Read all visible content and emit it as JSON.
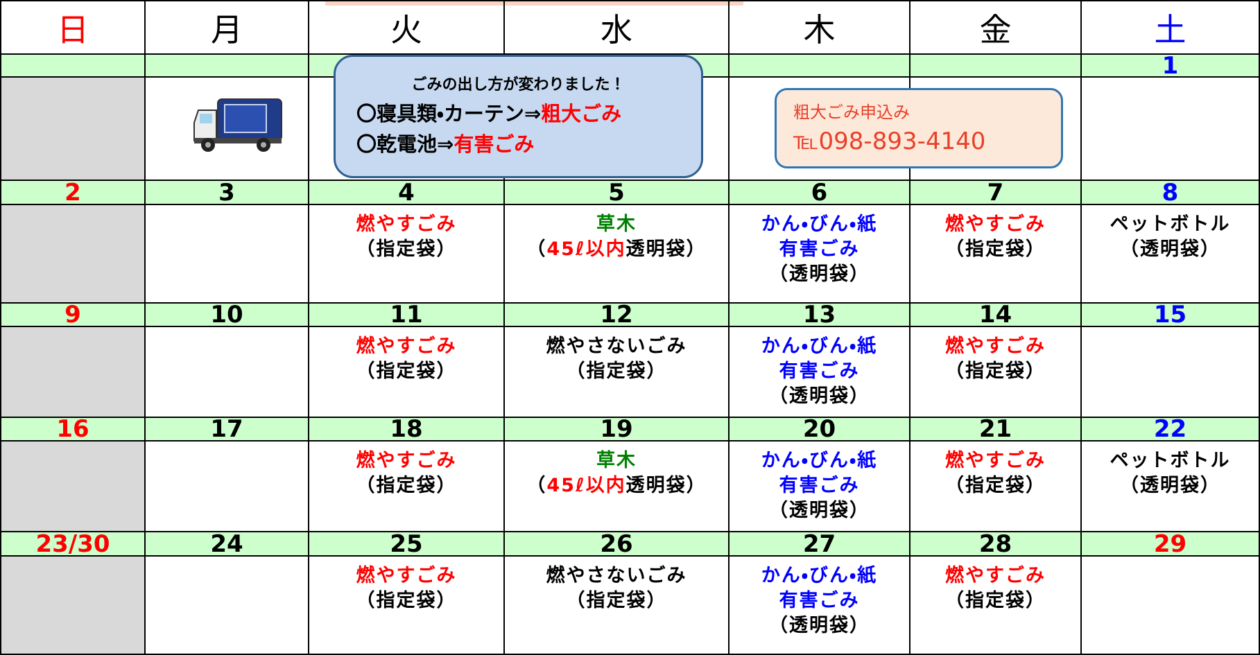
{
  "header": {
    "weekdays": [
      {
        "text": "日",
        "color": "#ff0000"
      },
      {
        "text": "月"
      },
      {
        "text": "火"
      },
      {
        "text": "水"
      },
      {
        "text": "木"
      },
      {
        "text": "金"
      },
      {
        "text": "土",
        "color": "#0000ff"
      }
    ]
  },
  "notices": [
    {
      "lines": [
        [
          {
            "text": "ごみの出し方が変わりました！"
          }
        ],
        [
          {
            "text": "〇寝具類・カーテン⇒"
          },
          {
            "text": "粗大ごみ",
            "color": "#ff0000"
          }
        ],
        [
          {
            "text": "〇乾電池⇒"
          },
          {
            "text": "有害ごみ",
            "color": "#ff0000"
          }
        ]
      ]
    },
    {
      "lines": [
        [
          {
            "text": "粗大ごみ申込み"
          }
        ],
        [
          {
            "text": "℡098-893-4140"
          }
        ]
      ]
    }
  ],
  "weeks": [
    {
      "cells": [
        {},
        {},
        {},
        {},
        {},
        {},
        {
          "date": "1",
          "date_color": "#0000ff"
        }
      ]
    },
    {
      "cells": [
        {
          "date": "2",
          "date_color": "#ff0000"
        },
        {
          "date": "3"
        },
        {
          "date": "4",
          "lines": [
            [
              {
                "text": "燃やすごみ",
                "color": "#ff0000"
              }
            ],
            [
              {
                "text": "（指定袋）"
              }
            ]
          ]
        },
        {
          "date": "5",
          "lines": [
            [
              {
                "text": "草木",
                "color": "#008000"
              }
            ],
            [
              {
                "text": "（"
              },
              {
                "text": "45ℓ以内",
                "color": "#ff0000"
              },
              {
                "text": "透明袋）"
              }
            ]
          ]
        },
        {
          "date": "6",
          "lines": [
            [
              {
                "text": "かん・びん・紙",
                "color": "#0000ff"
              }
            ],
            [
              {
                "text": "有害ごみ",
                "color": "#0000ff"
              }
            ],
            [
              {
                "text": "（透明袋）"
              }
            ]
          ]
        },
        {
          "date": "7",
          "lines": [
            [
              {
                "text": "燃やすごみ",
                "color": "#ff0000"
              }
            ],
            [
              {
                "text": "（指定袋）"
              }
            ]
          ]
        },
        {
          "date": "8",
          "date_color": "#0000ff",
          "lines": [
            [
              {
                "text": "ペットボトル"
              }
            ],
            [
              {
                "text": "（透明袋）"
              }
            ]
          ]
        }
      ]
    },
    {
      "cells": [
        {
          "date": "9",
          "date_color": "#ff0000"
        },
        {
          "date": "10"
        },
        {
          "date": "11",
          "lines": [
            [
              {
                "text": "燃やすごみ",
                "color": "#ff0000"
              }
            ],
            [
              {
                "text": "（指定袋）"
              }
            ]
          ]
        },
        {
          "date": "12",
          "lines": [
            [
              {
                "text": "燃やさないごみ"
              }
            ],
            [
              {
                "text": "（指定袋）"
              }
            ]
          ]
        },
        {
          "date": "13",
          "lines": [
            [
              {
                "text": "かん・びん・紙",
                "color": "#0000ff"
              }
            ],
            [
              {
                "text": "有害ごみ",
                "color": "#0000ff"
              }
            ],
            [
              {
                "text": "（透明袋）"
              }
            ]
          ]
        },
        {
          "date": "14",
          "lines": [
            [
              {
                "text": "燃やすごみ",
                "color": "#ff0000"
              }
            ],
            [
              {
                "text": "（指定袋）"
              }
            ]
          ]
        },
        {
          "date": "15",
          "date_color": "#0000ff"
        }
      ]
    },
    {
      "cells": [
        {
          "date": "16",
          "date_color": "#ff0000"
        },
        {
          "date": "17"
        },
        {
          "date": "18",
          "lines": [
            [
              {
                "text": "燃やすごみ",
                "color": "#ff0000"
              }
            ],
            [
              {
                "text": "（指定袋）"
              }
            ]
          ]
        },
        {
          "date": "19",
          "lines": [
            [
              {
                "text": "草木",
                "color": "#008000"
              }
            ],
            [
              {
                "text": "（"
              },
              {
                "text": "45ℓ以内",
                "color": "#ff0000"
              },
              {
                "text": "透明袋）"
              }
            ]
          ]
        },
        {
          "date": "20",
          "lines": [
            [
              {
                "text": "かん・びん・紙",
                "color": "#0000ff"
              }
            ],
            [
              {
                "text": "有害ごみ",
                "color": "#0000ff"
              }
            ],
            [
              {
                "text": "（透明袋）"
              }
            ]
          ]
        },
        {
          "date": "21",
          "lines": [
            [
              {
                "text": "燃やすごみ",
                "color": "#ff0000"
              }
            ],
            [
              {
                "text": "（指定袋）"
              }
            ]
          ]
        },
        {
          "date": "22",
          "date_color": "#0000ff",
          "lines": [
            [
              {
                "text": "ペットボトル"
              }
            ],
            [
              {
                "text": "（透明袋）"
              }
            ]
          ]
        }
      ]
    },
    {
      "cells": [
        {
          "date": "23/30",
          "date_color": "#ff0000"
        },
        {
          "date": "24"
        },
        {
          "date": "25",
          "lines": [
            [
              {
                "text": "燃やすごみ",
                "color": "#ff0000"
              }
            ],
            [
              {
                "text": "（指定袋）"
              }
            ]
          ]
        },
        {
          "date": "26",
          "lines": [
            [
              {
                "text": "燃やさないごみ"
              }
            ],
            [
              {
                "text": "（指定袋）"
              }
            ]
          ]
        },
        {
          "date": "27",
          "lines": [
            [
              {
                "text": "かん・びん・紙",
                "color": "#0000ff"
              }
            ],
            [
              {
                "text": "有害ごみ",
                "color": "#0000ff"
              }
            ],
            [
              {
                "text": "（透明袋）"
              }
            ]
          ]
        },
        {
          "date": "28",
          "lines": [
            [
              {
                "text": "燃やすごみ",
                "color": "#ff0000"
              }
            ],
            [
              {
                "text": "（指定袋）"
              }
            ]
          ]
        },
        {
          "date": "29",
          "date_color": "#ff0000"
        }
      ]
    }
  ]
}
